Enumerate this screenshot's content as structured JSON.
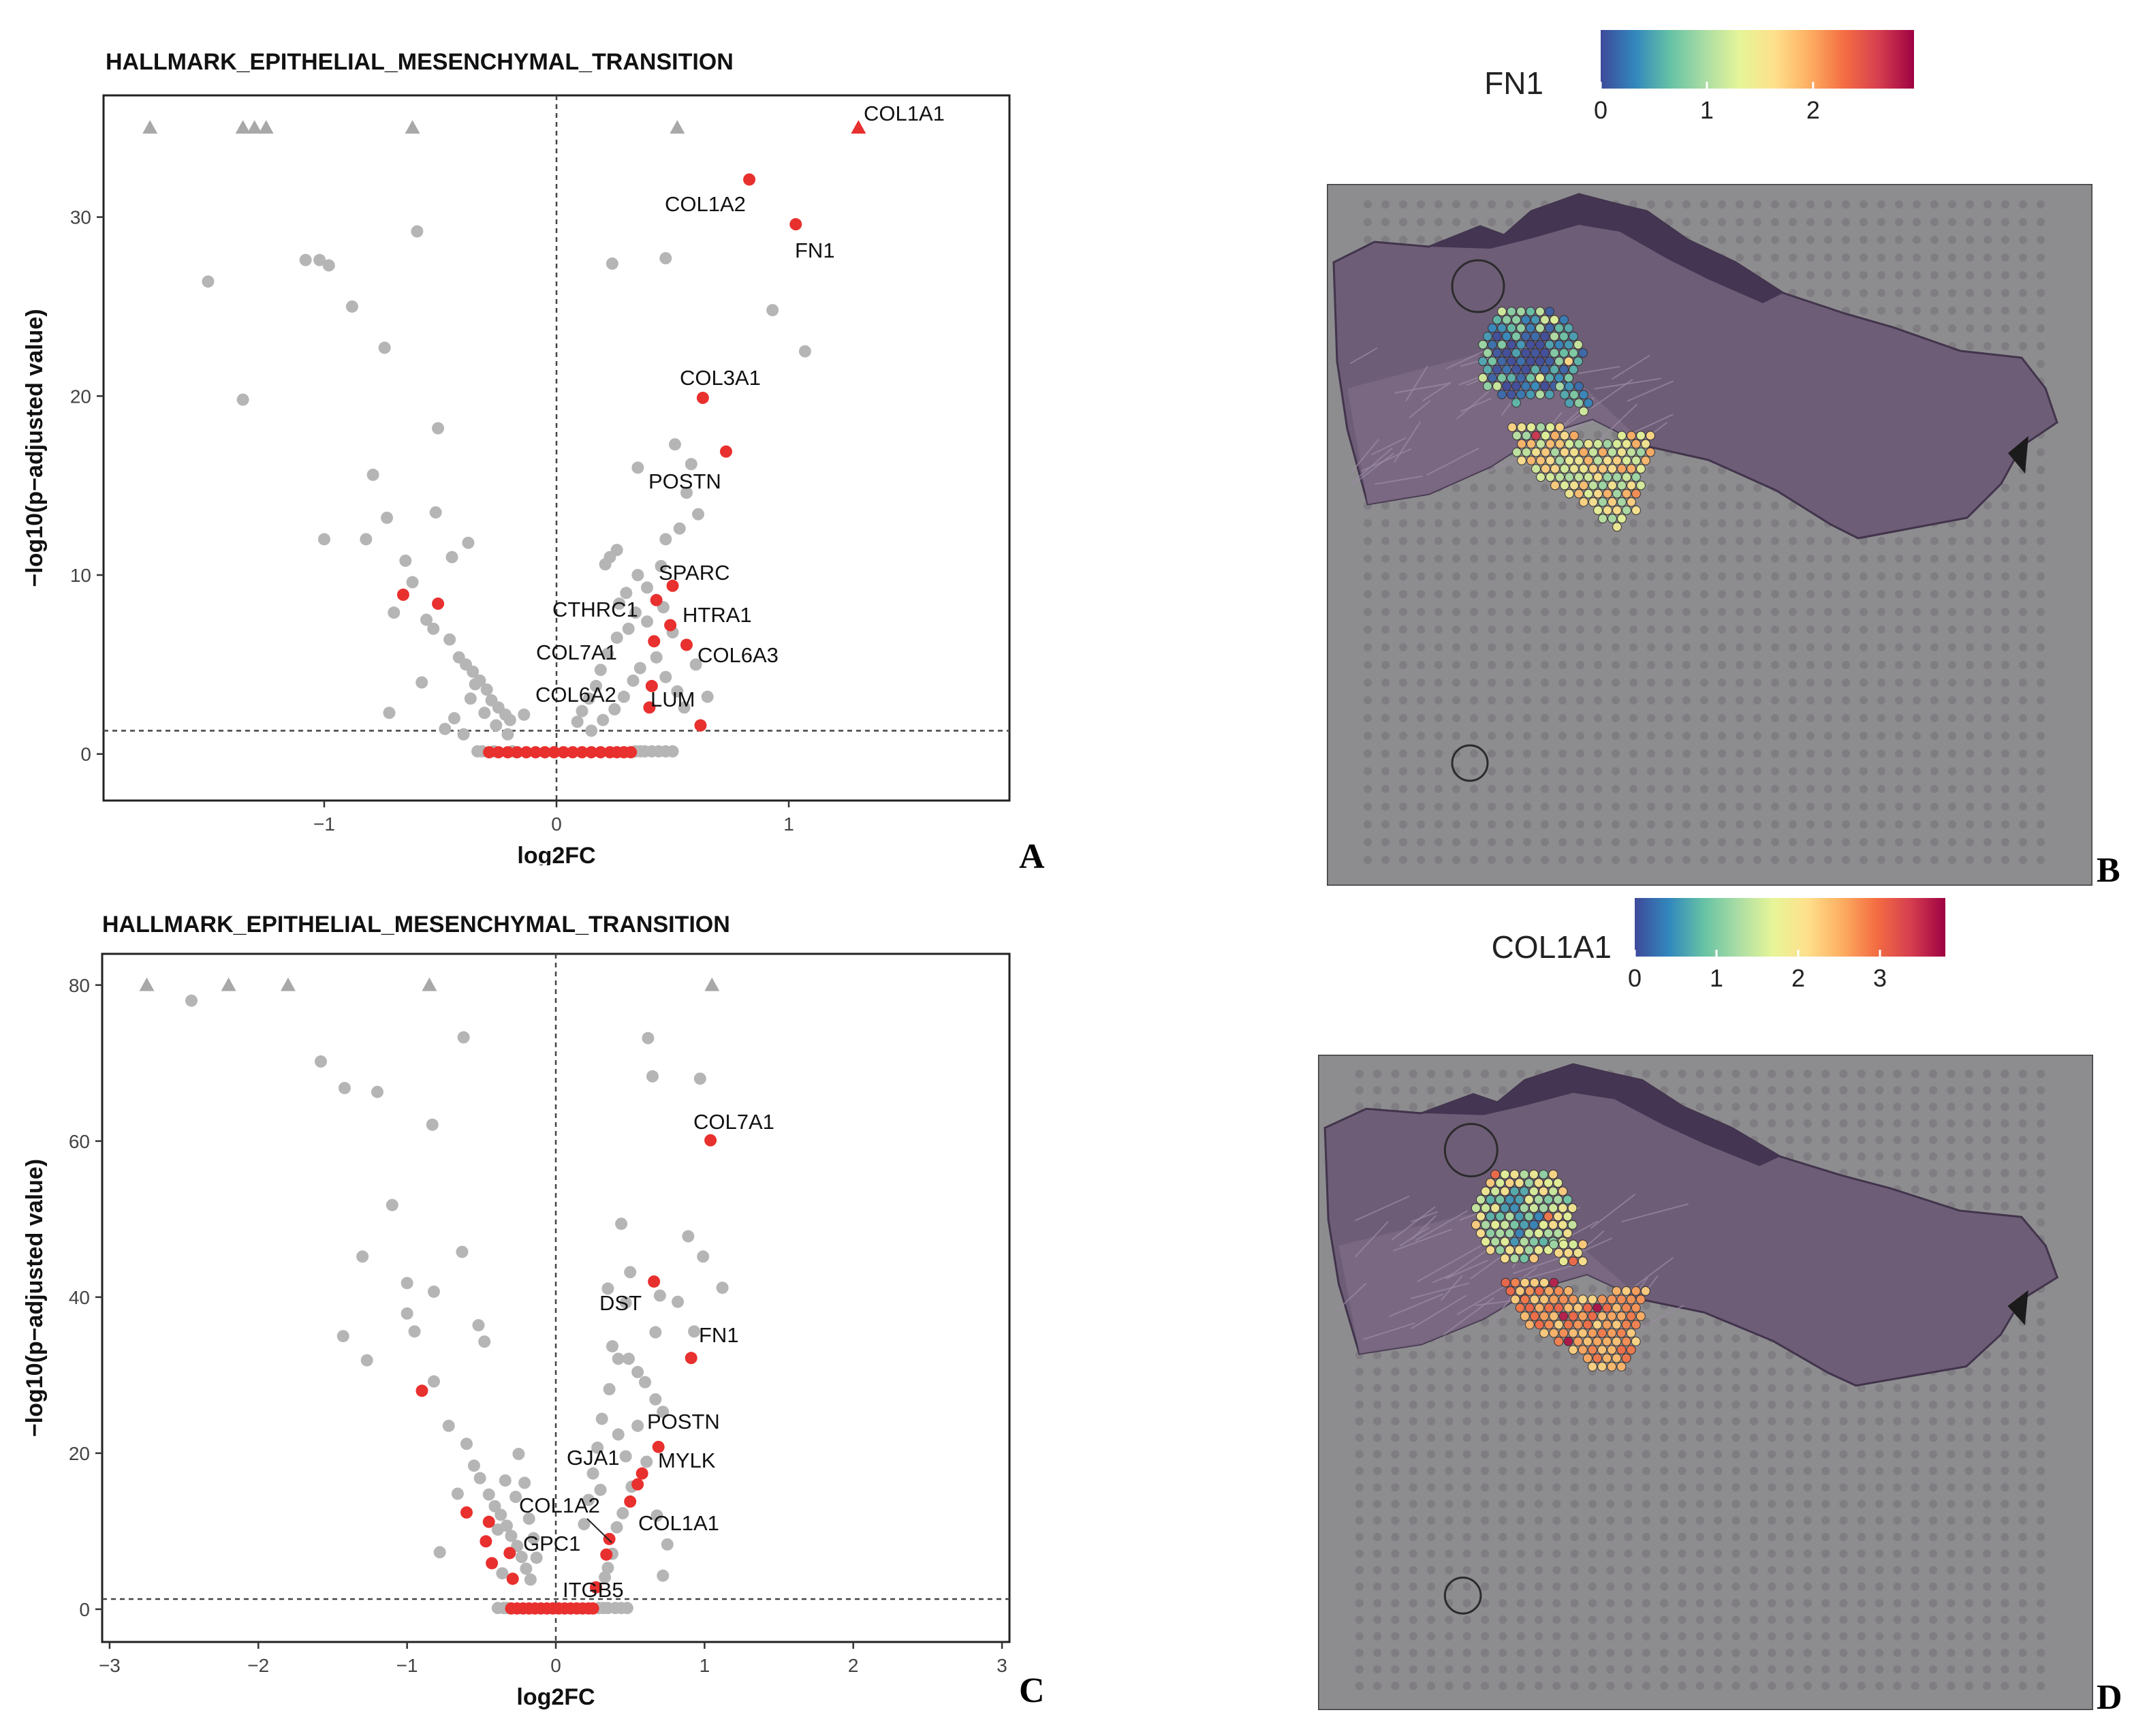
{
  "figure": {
    "panel_letters": [
      "A",
      "B",
      "C",
      "D"
    ]
  },
  "chart_data": [
    {
      "panel": "A",
      "type": "scatter",
      "title": "HALLMARK_EPITHELIAL_MESENCHYMAL_TRANSITION",
      "xlabel": "log2FC",
      "ylabel": "−log10(p−adjusted value)",
      "xlim": [
        -1.95,
        1.95
      ],
      "ylim": [
        -2.6,
        36.8
      ],
      "xticks": [
        -1,
        0,
        1
      ],
      "xtick_labels": [
        "−1",
        "0",
        "1"
      ],
      "yticks": [
        0,
        10,
        20,
        30
      ],
      "ytick_labels": [
        "0",
        "10",
        "20",
        "30"
      ],
      "vline": 0,
      "hline": 1.3,
      "capped_points": {
        "grey": [
          -1.75,
          -1.35,
          -1.3,
          -1.25,
          -0.62,
          0.52
        ],
        "red": [
          {
            "x": 1.3,
            "label": "COL1A1"
          }
        ],
        "y": 35
      },
      "highlight_series": [
        {
          "label": "COL1A2",
          "x": 0.83,
          "y": 32.1
        },
        {
          "label": "FN1",
          "x": 1.03,
          "y": 29.6
        },
        {
          "label": "COL3A1",
          "x": 0.63,
          "y": 19.9
        },
        {
          "label": "POSTN",
          "x": 0.73,
          "y": 16.9
        },
        {
          "label": "SPARC",
          "x": 0.5,
          "y": 9.4
        },
        {
          "label": "CTHRC1",
          "x": 0.43,
          "y": 8.6
        },
        {
          "label": "HTRA1",
          "x": 0.49,
          "y": 7.2
        },
        {
          "label": "COL7A1",
          "x": 0.42,
          "y": 6.3
        },
        {
          "label": "COL6A3",
          "x": 0.56,
          "y": 6.1
        },
        {
          "label": "COL6A2",
          "x": 0.41,
          "y": 3.8
        },
        {
          "label": "LUM",
          "x": 0.4,
          "y": 2.6
        },
        {
          "label": "",
          "x": 0.62,
          "y": 1.6
        },
        {
          "label": "",
          "x": -0.66,
          "y": 8.9
        },
        {
          "label": "",
          "x": -0.51,
          "y": 8.4
        }
      ],
      "background_points": [
        [
          -1.5,
          26.4
        ],
        [
          -1.35,
          19.8
        ],
        [
          -1.08,
          27.6
        ],
        [
          -1.02,
          27.6
        ],
        [
          -0.98,
          27.3
        ],
        [
          -0.88,
          25.0
        ],
        [
          -0.6,
          29.2
        ],
        [
          -0.74,
          22.7
        ],
        [
          -0.51,
          18.2
        ],
        [
          -0.79,
          15.6
        ],
        [
          -1.0,
          12.0
        ],
        [
          -0.82,
          12.0
        ],
        [
          -0.73,
          13.2
        ],
        [
          -0.52,
          13.5
        ],
        [
          -0.65,
          10.8
        ],
        [
          -0.62,
          9.6
        ],
        [
          -0.45,
          11.0
        ],
        [
          -0.38,
          11.8
        ],
        [
          -0.7,
          7.9
        ],
        [
          -0.56,
          7.5
        ],
        [
          -0.53,
          7.0
        ],
        [
          -0.46,
          6.4
        ],
        [
          -0.42,
          5.4
        ],
        [
          -0.39,
          5.0
        ],
        [
          -0.36,
          4.6
        ],
        [
          -0.33,
          4.1
        ],
        [
          -0.3,
          3.6
        ],
        [
          -0.28,
          3.0
        ],
        [
          -0.25,
          2.6
        ],
        [
          -0.22,
          2.2
        ],
        [
          -0.2,
          1.9
        ],
        [
          -0.26,
          1.6
        ],
        [
          -0.21,
          1.1
        ],
        [
          -0.37,
          3.1
        ],
        [
          -0.44,
          2.0
        ],
        [
          -0.48,
          1.4
        ],
        [
          -0.72,
          2.3
        ],
        [
          -0.58,
          4.0
        ],
        [
          -0.35,
          3.9
        ],
        [
          -0.31,
          2.3
        ],
        [
          -0.4,
          1.1
        ],
        [
          -0.14,
          2.2
        ],
        [
          0.24,
          27.4
        ],
        [
          0.47,
          27.7
        ],
        [
          0.93,
          24.8
        ],
        [
          1.07,
          22.5
        ],
        [
          0.58,
          16.2
        ],
        [
          0.51,
          17.3
        ],
        [
          0.35,
          16.0
        ],
        [
          0.56,
          14.6
        ],
        [
          0.61,
          13.4
        ],
        [
          0.53,
          12.6
        ],
        [
          0.47,
          12.0
        ],
        [
          0.26,
          11.4
        ],
        [
          0.23,
          11.0
        ],
        [
          0.21,
          10.6
        ],
        [
          0.3,
          9.0
        ],
        [
          0.35,
          10.0
        ],
        [
          0.45,
          10.5
        ],
        [
          0.39,
          9.3
        ],
        [
          0.27,
          8.4
        ],
        [
          0.34,
          7.9
        ],
        [
          0.31,
          7.0
        ],
        [
          0.26,
          6.5
        ],
        [
          0.22,
          5.6
        ],
        [
          0.19,
          4.7
        ],
        [
          0.17,
          3.8
        ],
        [
          0.14,
          3.1
        ],
        [
          0.11,
          2.4
        ],
        [
          0.09,
          1.8
        ],
        [
          0.36,
          4.8
        ],
        [
          0.33,
          4.1
        ],
        [
          0.29,
          3.2
        ],
        [
          0.25,
          2.5
        ],
        [
          0.2,
          1.9
        ],
        [
          0.43,
          5.4
        ],
        [
          0.47,
          4.3
        ],
        [
          0.52,
          3.5
        ],
        [
          0.55,
          2.6
        ],
        [
          0.65,
          3.2
        ],
        [
          0.15,
          1.3
        ],
        [
          0.6,
          5.0
        ],
        [
          0.39,
          7.4
        ],
        [
          0.46,
          8.2
        ],
        [
          0.5,
          6.8
        ]
      ],
      "zero_band": {
        "red": [
          -0.29,
          -0.25,
          -0.21,
          -0.17,
          -0.13,
          -0.09,
          -0.05,
          -0.01,
          0.03,
          0.07,
          0.11,
          0.15,
          0.19,
          0.23,
          0.26,
          0.29,
          0.32
        ],
        "grey": [
          -0.34,
          -0.32,
          -0.27,
          -0.19,
          0.34,
          0.36,
          0.38,
          0.41,
          0.44,
          0.47,
          0.5
        ]
      }
    },
    {
      "panel": "C",
      "type": "scatter",
      "title": "HALLMARK_EPITHELIAL_MESENCHYMAL_TRANSITION",
      "xlabel": "log2FC",
      "ylabel": "−log10(p−adjusted value)",
      "xlim": [
        -3.05,
        3.05
      ],
      "ylim": [
        -4.2,
        84.0
      ],
      "xticks": [
        -3,
        -2,
        -1,
        0,
        1,
        2,
        3
      ],
      "xtick_labels": [
        "−3",
        "−2",
        "−1",
        "0",
        "1",
        "2",
        "3"
      ],
      "yticks": [
        0,
        20,
        40,
        60,
        80
      ],
      "ytick_labels": [
        "0",
        "20",
        "40",
        "60",
        "80"
      ],
      "vline": 0,
      "hline": 1.3,
      "capped_points": {
        "grey": [
          -2.75,
          -2.2,
          -1.8,
          -0.85,
          1.05
        ],
        "red": [],
        "y": 80
      },
      "highlight_series": [
        {
          "label": "COL7A1",
          "x": 1.04,
          "y": 60.1
        },
        {
          "label": "DST",
          "x": 0.66,
          "y": 42.0
        },
        {
          "label": "FN1",
          "x": 0.91,
          "y": 32.2
        },
        {
          "label": "POSTN",
          "x": 0.69,
          "y": 20.8
        },
        {
          "label": "MYLK",
          "x": 0.58,
          "y": 17.4
        },
        {
          "label": "GJA1",
          "x": 0.55,
          "y": 16.0
        },
        {
          "label": "COL1A1",
          "x": 0.5,
          "y": 13.8
        },
        {
          "label": "COL1A2",
          "x": 0.36,
          "y": 9.0
        },
        {
          "label": "GPC1",
          "x": 0.34,
          "y": 7.0
        },
        {
          "label": "ITGB5",
          "x": 0.27,
          "y": 2.8
        },
        {
          "label": "",
          "x": -0.9,
          "y": 28.0
        },
        {
          "label": "",
          "x": -0.6,
          "y": 12.4
        },
        {
          "label": "",
          "x": -0.45,
          "y": 11.2
        },
        {
          "label": "",
          "x": -0.47,
          "y": 8.7
        },
        {
          "label": "",
          "x": -0.31,
          "y": 7.2
        },
        {
          "label": "",
          "x": -0.43,
          "y": 5.9
        },
        {
          "label": "",
          "x": -0.29,
          "y": 3.9
        }
      ],
      "background_points": [
        [
          -2.45,
          78.0
        ],
        [
          -1.58,
          70.2
        ],
        [
          -1.42,
          66.8
        ],
        [
          -1.2,
          66.3
        ],
        [
          -0.62,
          73.3
        ],
        [
          -0.83,
          62.1
        ],
        [
          -1.1,
          51.8
        ],
        [
          -1.3,
          45.2
        ],
        [
          -0.63,
          45.8
        ],
        [
          -1.43,
          35.0
        ],
        [
          -1.0,
          41.8
        ],
        [
          -0.82,
          40.7
        ],
        [
          -1.0,
          37.9
        ],
        [
          -0.95,
          35.6
        ],
        [
          -1.27,
          31.9
        ],
        [
          -0.52,
          36.4
        ],
        [
          -0.48,
          34.3
        ],
        [
          -0.82,
          29.2
        ],
        [
          -0.72,
          23.5
        ],
        [
          -0.6,
          21.2
        ],
        [
          -0.55,
          18.4
        ],
        [
          -0.51,
          16.8
        ],
        [
          -0.45,
          14.7
        ],
        [
          -0.41,
          13.2
        ],
        [
          -0.37,
          12.1
        ],
        [
          -0.33,
          10.7
        ],
        [
          -0.3,
          9.4
        ],
        [
          -0.26,
          8.1
        ],
        [
          -0.23,
          6.7
        ],
        [
          -0.2,
          5.2
        ],
        [
          -0.17,
          3.8
        ],
        [
          -0.25,
          19.9
        ],
        [
          -0.21,
          16.2
        ],
        [
          -0.27,
          14.4
        ],
        [
          -0.18,
          11.6
        ],
        [
          -0.15,
          9.1
        ],
        [
          -0.13,
          6.6
        ],
        [
          -0.78,
          7.3
        ],
        [
          -0.66,
          14.8
        ],
        [
          -0.39,
          10.2
        ],
        [
          -0.36,
          4.6
        ],
        [
          -0.34,
          16.5
        ],
        [
          0.62,
          73.2
        ],
        [
          0.65,
          68.3
        ],
        [
          0.97,
          68.0
        ],
        [
          0.44,
          49.4
        ],
        [
          0.89,
          47.8
        ],
        [
          0.99,
          45.2
        ],
        [
          1.12,
          41.2
        ],
        [
          0.5,
          43.2
        ],
        [
          0.35,
          41.1
        ],
        [
          0.7,
          40.2
        ],
        [
          0.47,
          39.3
        ],
        [
          0.82,
          39.4
        ],
        [
          0.67,
          35.5
        ],
        [
          0.93,
          35.6
        ],
        [
          0.38,
          33.7
        ],
        [
          0.42,
          32.1
        ],
        [
          0.49,
          32.1
        ],
        [
          0.55,
          30.4
        ],
        [
          0.6,
          29.1
        ],
        [
          0.67,
          26.9
        ],
        [
          0.72,
          25.3
        ],
        [
          0.36,
          28.2
        ],
        [
          0.31,
          24.4
        ],
        [
          0.28,
          20.7
        ],
        [
          0.25,
          17.4
        ],
        [
          0.22,
          14.0
        ],
        [
          0.19,
          10.9
        ],
        [
          0.42,
          22.4
        ],
        [
          0.47,
          19.6
        ],
        [
          0.51,
          15.7
        ],
        [
          0.45,
          12.3
        ],
        [
          0.41,
          10.5
        ],
        [
          0.38,
          7.1
        ],
        [
          0.35,
          5.3
        ],
        [
          0.33,
          4.1
        ],
        [
          0.55,
          23.5
        ],
        [
          0.61,
          18.9
        ],
        [
          0.68,
          12.0
        ],
        [
          0.72,
          4.3
        ],
        [
          0.75,
          8.3
        ],
        [
          0.3,
          15.3
        ]
      ],
      "zero_band": {
        "red": [
          -0.3,
          -0.26,
          -0.22,
          -0.18,
          -0.14,
          -0.1,
          -0.06,
          -0.02,
          0.02,
          0.06,
          0.1,
          0.14,
          0.18,
          0.22,
          0.25
        ],
        "grey": [
          -0.35,
          -0.33,
          -0.39,
          0.29,
          0.32,
          0.35,
          0.4,
          0.44,
          0.48
        ]
      }
    },
    {
      "panel": "B",
      "type": "heatmap",
      "title": "FN1",
      "colorbar_ticks": [
        "0",
        "1",
        "2"
      ],
      "colorbar_range": [
        0,
        2.95
      ],
      "colorscale": [
        "#3e4a9b",
        "#3288bd",
        "#66c2a5",
        "#abdda4",
        "#e6f598",
        "#fee08b",
        "#fdae61",
        "#f46d43",
        "#d53e4f",
        "#9e0142"
      ],
      "regions": [
        {
          "name": "upper cluster",
          "mean_value": 0.7,
          "spread": 0.6
        },
        {
          "name": "lower cluster",
          "mean_value": 1.45,
          "spread": 0.55
        }
      ]
    },
    {
      "panel": "D",
      "type": "heatmap",
      "title": "COL1A1",
      "colorbar_ticks": [
        "0",
        "1",
        "2",
        "3"
      ],
      "colorbar_range": [
        0,
        3.8
      ],
      "colorscale": [
        "#3e4a9b",
        "#3288bd",
        "#66c2a5",
        "#abdda4",
        "#e6f598",
        "#fee08b",
        "#fdae61",
        "#f46d43",
        "#d53e4f",
        "#9e0142"
      ],
      "regions": [
        {
          "name": "upper cluster",
          "mean_value": 1.6,
          "spread": 0.7
        },
        {
          "name": "lower cluster",
          "mean_value": 2.6,
          "spread": 0.45
        }
      ]
    }
  ]
}
